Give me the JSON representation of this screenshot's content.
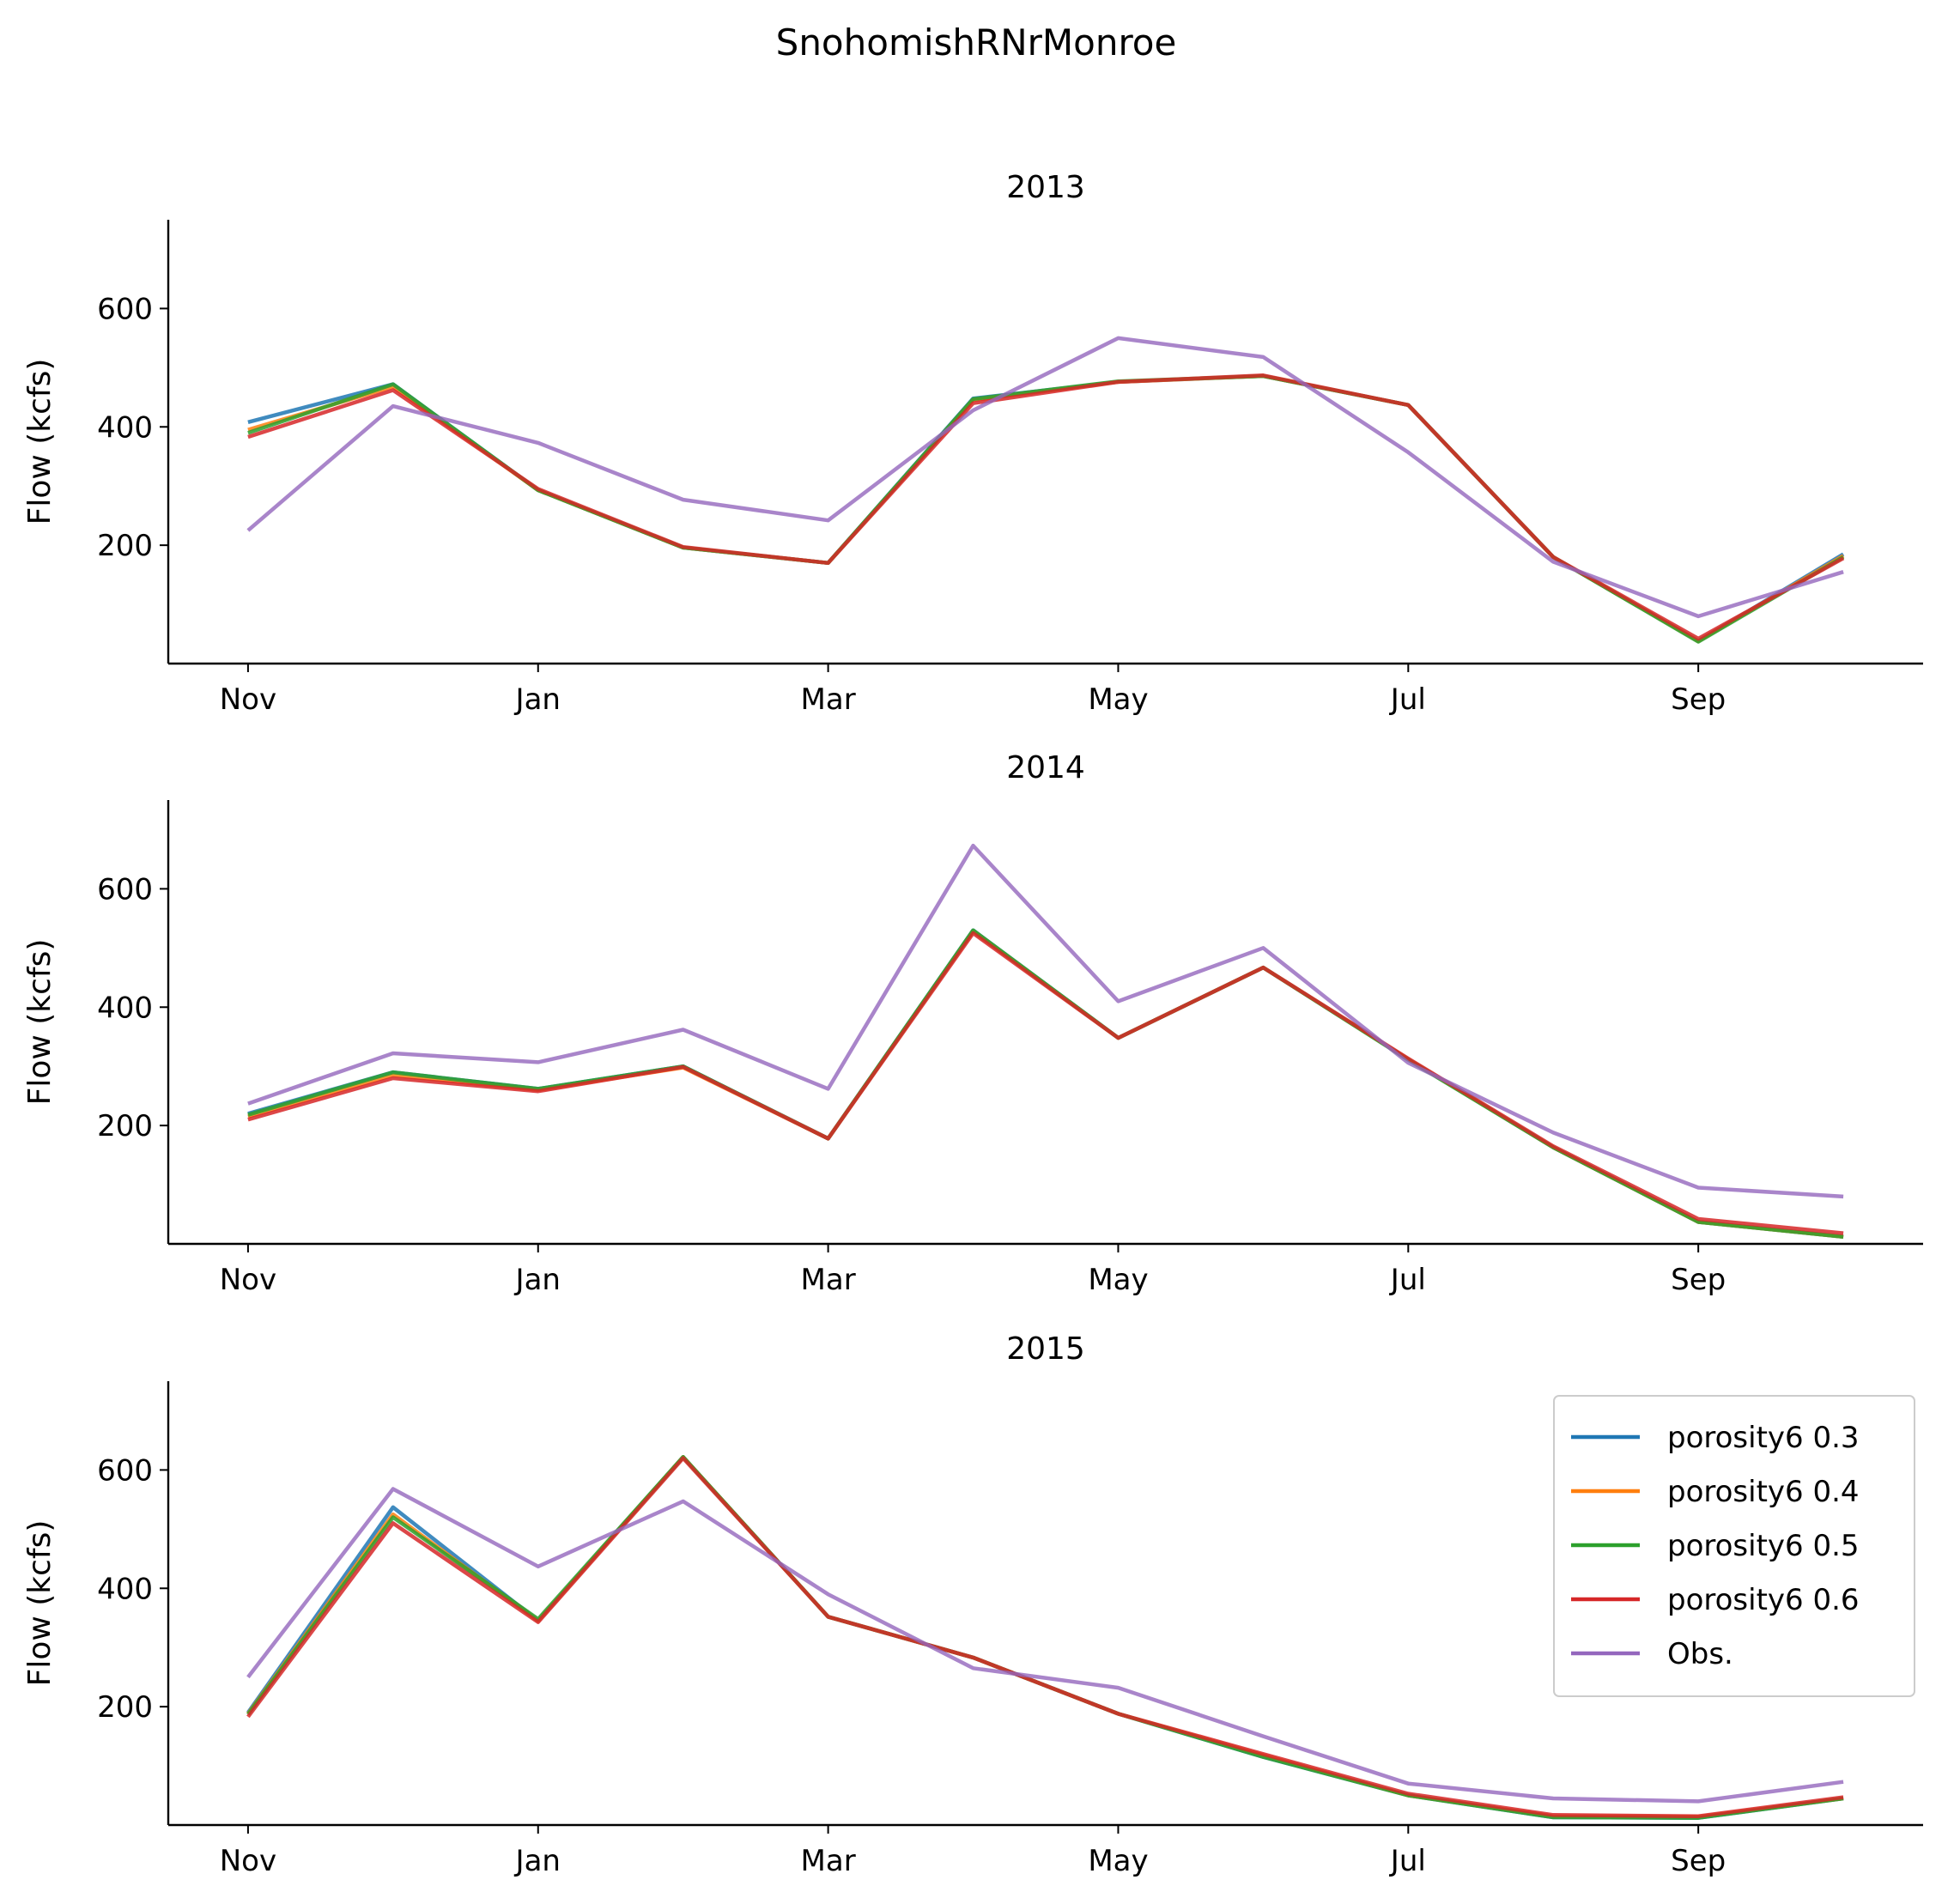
{
  "figure": {
    "title": "SnohomishRNrMonroe"
  },
  "legend": {
    "placement": "upper-right of last panel",
    "entries": [
      "porosity6 0.3",
      "porosity6 0.4",
      "porosity6 0.5",
      "porosity6 0.6",
      "Obs."
    ]
  },
  "colors": {
    "porosity6 0.3": "#1f77b4",
    "porosity6 0.4": "#ff7f0e",
    "porosity6 0.5": "#2ca02c",
    "porosity6 0.6": "#d62728",
    "Obs.": "#9467bd"
  },
  "chart_data": [
    {
      "type": "line",
      "title": "2013",
      "xlabel": "",
      "ylabel": "Flow (kcfs)",
      "x": [
        0,
        1,
        2,
        3,
        4,
        5,
        6,
        7,
        8,
        9,
        10,
        11
      ],
      "xticks": [
        0,
        2,
        4,
        6,
        8,
        10
      ],
      "xtick_labels": [
        "Nov",
        "Jan",
        "Mar",
        "May",
        "Jul",
        "Sep"
      ],
      "yticks": [
        200,
        400,
        600
      ],
      "ylim": [
        0,
        750
      ],
      "grid": false,
      "series": [
        {
          "name": "porosity6 0.3",
          "values": [
            408,
            472,
            293,
            196,
            170,
            448,
            476,
            486,
            437,
            180,
            38,
            185
          ]
        },
        {
          "name": "porosity6 0.4",
          "values": [
            395,
            468,
            293,
            196,
            170,
            445,
            476,
            486,
            437,
            180,
            38,
            182
          ]
        },
        {
          "name": "porosity6 0.5",
          "values": [
            390,
            472,
            293,
            196,
            170,
            447,
            477,
            486,
            437,
            180,
            37,
            180
          ]
        },
        {
          "name": "porosity6 0.6",
          "values": [
            383,
            462,
            295,
            197,
            170,
            440,
            476,
            487,
            437,
            180,
            42,
            178
          ]
        },
        {
          "name": "Obs.",
          "values": [
            225,
            435,
            373,
            277,
            242,
            428,
            550,
            518,
            357,
            172,
            80,
            155
          ]
        }
      ]
    },
    {
      "type": "line",
      "title": "2014",
      "xlabel": "",
      "ylabel": "Flow (kcfs)",
      "x": [
        0,
        1,
        2,
        3,
        4,
        5,
        6,
        7,
        8,
        9,
        10,
        11
      ],
      "xticks": [
        0,
        2,
        4,
        6,
        8,
        10
      ],
      "xtick_labels": [
        "Nov",
        "Jan",
        "Mar",
        "May",
        "Jul",
        "Sep"
      ],
      "yticks": [
        200,
        400,
        600
      ],
      "ylim": [
        0,
        750
      ],
      "grid": false,
      "series": [
        {
          "name": "porosity6 0.3",
          "values": [
            220,
            290,
            262,
            300,
            178,
            530,
            348,
            467,
            312,
            163,
            37,
            12
          ]
        },
        {
          "name": "porosity6 0.4",
          "values": [
            215,
            285,
            260,
            298,
            178,
            528,
            348,
            467,
            312,
            163,
            37,
            12
          ]
        },
        {
          "name": "porosity6 0.5",
          "values": [
            218,
            290,
            262,
            300,
            178,
            530,
            348,
            467,
            311,
            163,
            37,
            12
          ]
        },
        {
          "name": "porosity6 0.6",
          "values": [
            210,
            280,
            258,
            299,
            178,
            525,
            348,
            467,
            313,
            165,
            42,
            18
          ]
        },
        {
          "name": "Obs.",
          "values": [
            237,
            322,
            307,
            362,
            262,
            673,
            410,
            500,
            306,
            188,
            95,
            80
          ]
        }
      ]
    },
    {
      "type": "line",
      "title": "2015",
      "xlabel": "",
      "ylabel": "Flow (kcfs)",
      "x": [
        0,
        1,
        2,
        3,
        4,
        5,
        6,
        7,
        8,
        9,
        10,
        11
      ],
      "xticks": [
        0,
        2,
        4,
        6,
        8,
        10
      ],
      "xtick_labels": [
        "Nov",
        "Jan",
        "Mar",
        "May",
        "Jul",
        "Sep"
      ],
      "yticks": [
        200,
        400,
        600
      ],
      "ylim": [
        0,
        750
      ],
      "grid": false,
      "series": [
        {
          "name": "porosity6 0.3",
          "values": [
            190,
            537,
            345,
            622,
            352,
            283,
            188,
            115,
            50,
            13,
            12,
            45
          ]
        },
        {
          "name": "porosity6 0.4",
          "values": [
            188,
            525,
            345,
            622,
            352,
            283,
            188,
            118,
            50,
            15,
            14,
            45
          ]
        },
        {
          "name": "porosity6 0.5",
          "values": [
            187,
            520,
            348,
            622,
            352,
            283,
            188,
            115,
            50,
            13,
            12,
            45
          ]
        },
        {
          "name": "porosity6 0.6",
          "values": [
            183,
            510,
            343,
            620,
            352,
            283,
            188,
            120,
            53,
            17,
            15,
            47
          ]
        },
        {
          "name": "Obs.",
          "values": [
            250,
            568,
            437,
            547,
            390,
            265,
            232,
            150,
            70,
            45,
            40,
            73
          ]
        }
      ]
    }
  ]
}
